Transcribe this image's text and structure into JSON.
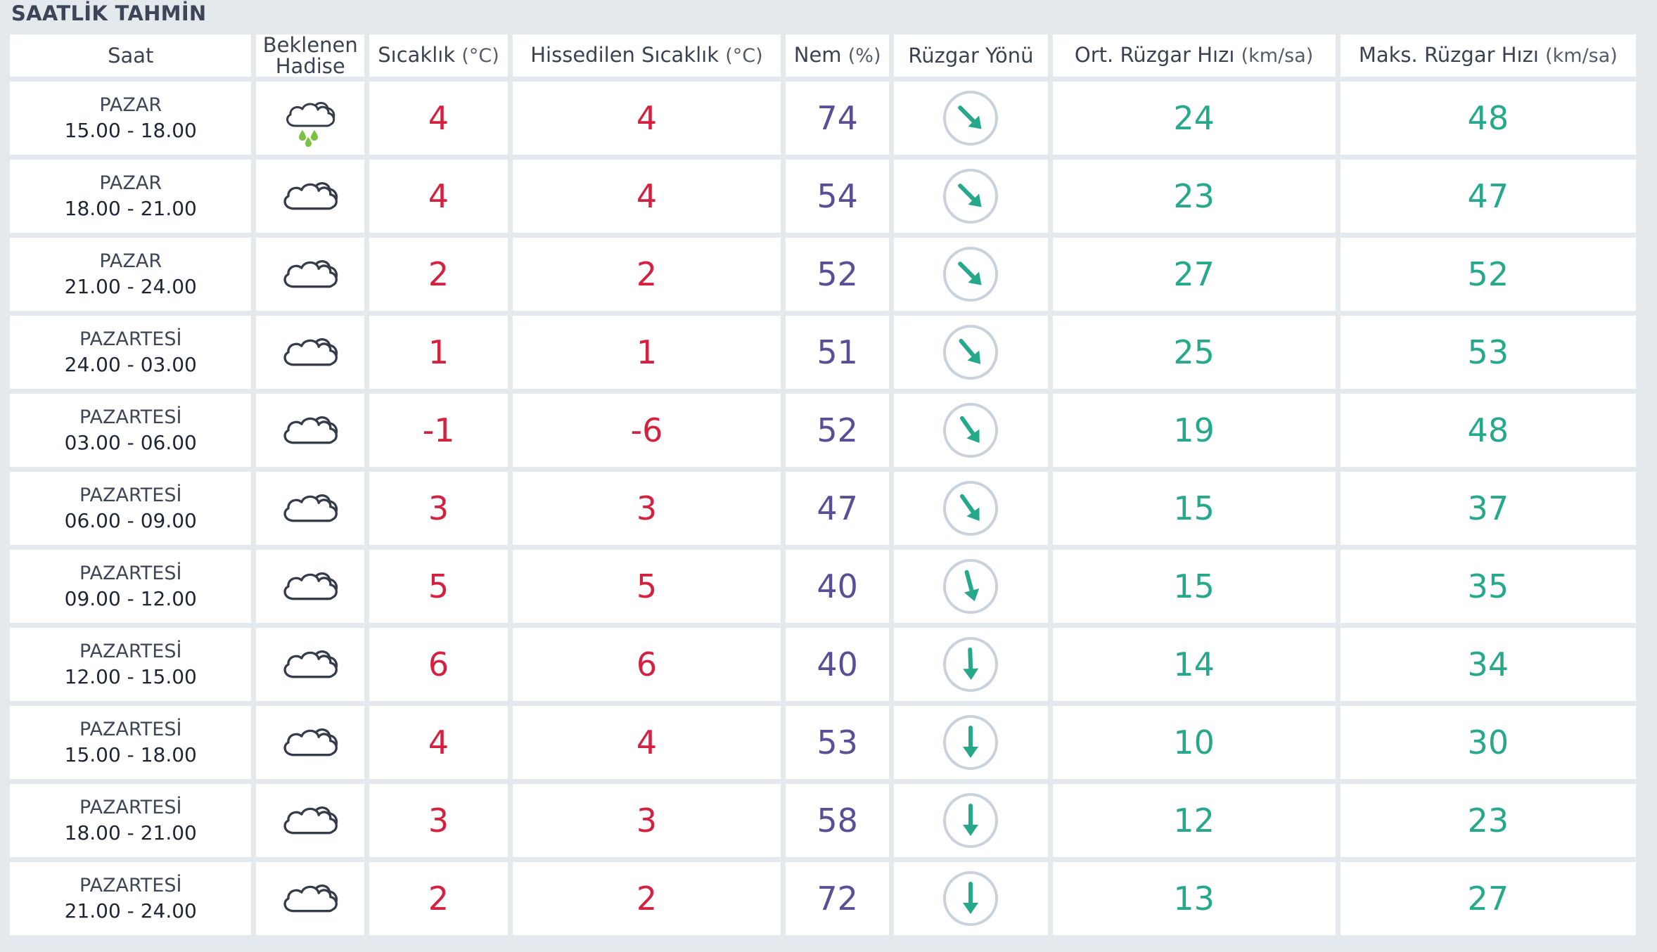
{
  "title": "SAATLİK TAHMİN",
  "headers": {
    "time": "Saat",
    "event_line1": "Beklenen",
    "event_line2": "Hadise",
    "temp": "Sıcaklık",
    "temp_unit": "(°C)",
    "feels": "Hissedilen Sıcaklık",
    "feels_unit": "(°C)",
    "humidity": "Nem",
    "humidity_unit": "(%)",
    "wind_dir": "Rüzgar Yönü",
    "avg_wind": "Ort. Rüzgar Hızı",
    "avg_wind_unit": "(km/sa)",
    "max_wind": "Maks. Rüzgar Hızı",
    "max_wind_unit": "(km/sa)"
  },
  "colors": {
    "temperature": "#d3213f",
    "humidity": "#5a4f96",
    "wind": "#26a98b",
    "rain_drop": "#7cc242"
  },
  "rows": [
    {
      "day": "PAZAR",
      "range": "15.00 - 18.00",
      "icon": "rain-cloud-icon",
      "temp": "4",
      "feels": "4",
      "humidity": "74",
      "wind_deg": 135,
      "avg_wind": "24",
      "max_wind": "48"
    },
    {
      "day": "PAZAR",
      "range": "18.00 - 21.00",
      "icon": "cloud-icon",
      "temp": "4",
      "feels": "4",
      "humidity": "54",
      "wind_deg": 135,
      "avg_wind": "23",
      "max_wind": "47"
    },
    {
      "day": "PAZAR",
      "range": "21.00 - 24.00",
      "icon": "cloud-icon",
      "temp": "2",
      "feels": "2",
      "humidity": "52",
      "wind_deg": 135,
      "avg_wind": "27",
      "max_wind": "52"
    },
    {
      "day": "PAZARTESİ",
      "range": "24.00 - 03.00",
      "icon": "cloud-icon",
      "temp": "1",
      "feels": "1",
      "humidity": "51",
      "wind_deg": 140,
      "avg_wind": "25",
      "max_wind": "53"
    },
    {
      "day": "PAZARTESİ",
      "range": "03.00 - 06.00",
      "icon": "cloud-icon",
      "temp": "-1",
      "feels": "-6",
      "humidity": "52",
      "wind_deg": 145,
      "avg_wind": "19",
      "max_wind": "48"
    },
    {
      "day": "PAZARTESİ",
      "range": "06.00 - 09.00",
      "icon": "cloud-icon",
      "temp": "3",
      "feels": "3",
      "humidity": "47",
      "wind_deg": 145,
      "avg_wind": "15",
      "max_wind": "37"
    },
    {
      "day": "PAZARTESİ",
      "range": "09.00 - 12.00",
      "icon": "cloud-icon",
      "temp": "5",
      "feels": "5",
      "humidity": "40",
      "wind_deg": 165,
      "avg_wind": "15",
      "max_wind": "35"
    },
    {
      "day": "PAZARTESİ",
      "range": "12.00 - 15.00",
      "icon": "cloud-icon",
      "temp": "6",
      "feels": "6",
      "humidity": "40",
      "wind_deg": 178,
      "avg_wind": "14",
      "max_wind": "34"
    },
    {
      "day": "PAZARTESİ",
      "range": "15.00 - 18.00",
      "icon": "cloud-icon",
      "temp": "4",
      "feels": "4",
      "humidity": "53",
      "wind_deg": 180,
      "avg_wind": "10",
      "max_wind": "30"
    },
    {
      "day": "PAZARTESİ",
      "range": "18.00 - 21.00",
      "icon": "cloud-icon",
      "temp": "3",
      "feels": "3",
      "humidity": "58",
      "wind_deg": 180,
      "avg_wind": "12",
      "max_wind": "23"
    },
    {
      "day": "PAZARTESİ",
      "range": "21.00 - 24.00",
      "icon": "cloud-icon",
      "temp": "2",
      "feels": "2",
      "humidity": "72",
      "wind_deg": 180,
      "avg_wind": "13",
      "max_wind": "27"
    }
  ]
}
